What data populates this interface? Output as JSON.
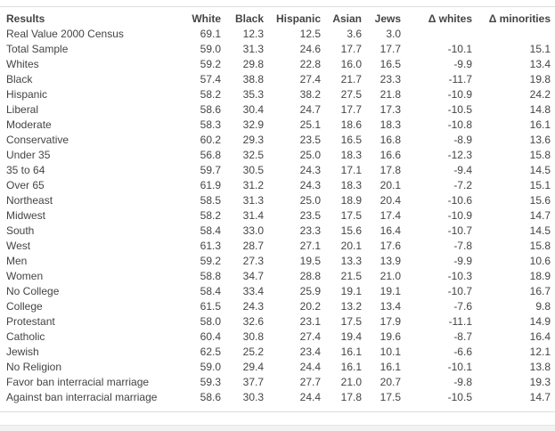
{
  "table": {
    "headers": [
      "Results",
      "White",
      "Black",
      "Hispanic",
      "Asian",
      "Jews",
      "Δ whites",
      "Δ minorities"
    ],
    "rows": [
      [
        "Real Value 2000 Census",
        "69.1",
        "12.3",
        "12.5",
        "3.6",
        "3.0",
        "",
        ""
      ],
      [
        "Total Sample",
        "59.0",
        "31.3",
        "24.6",
        "17.7",
        "17.7",
        "-10.1",
        "15.1"
      ],
      [
        "Whites",
        "59.2",
        "29.8",
        "22.8",
        "16.0",
        "16.5",
        "-9.9",
        "13.4"
      ],
      [
        "Black",
        "57.4",
        "38.8",
        "27.4",
        "21.7",
        "23.3",
        "-11.7",
        "19.8"
      ],
      [
        "Hispanic",
        "58.2",
        "35.3",
        "38.2",
        "27.5",
        "21.8",
        "-10.9",
        "24.2"
      ],
      [
        "Liberal",
        "58.6",
        "30.4",
        "24.7",
        "17.7",
        "17.3",
        "-10.5",
        "14.8"
      ],
      [
        "Moderate",
        "58.3",
        "32.9",
        "25.1",
        "18.6",
        "18.3",
        "-10.8",
        "16.1"
      ],
      [
        "Conservative",
        "60.2",
        "29.3",
        "23.5",
        "16.5",
        "16.8",
        "-8.9",
        "13.6"
      ],
      [
        "Under 35",
        "56.8",
        "32.5",
        "25.0",
        "18.3",
        "16.6",
        "-12.3",
        "15.8"
      ],
      [
        "35 to 64",
        "59.7",
        "30.5",
        "24.3",
        "17.1",
        "17.8",
        "-9.4",
        "14.5"
      ],
      [
        "Over 65",
        "61.9",
        "31.2",
        "24.3",
        "18.3",
        "20.1",
        "-7.2",
        "15.1"
      ],
      [
        "Northeast",
        "58.5",
        "31.3",
        "25.0",
        "18.9",
        "20.4",
        "-10.6",
        "15.6"
      ],
      [
        "Midwest",
        "58.2",
        "31.4",
        "23.5",
        "17.5",
        "17.4",
        "-10.9",
        "14.7"
      ],
      [
        "South",
        "58.4",
        "33.0",
        "23.3",
        "15.6",
        "16.4",
        "-10.7",
        "14.5"
      ],
      [
        "West",
        "61.3",
        "28.7",
        "27.1",
        "20.1",
        "17.6",
        "-7.8",
        "15.8"
      ],
      [
        "Men",
        "59.2",
        "27.3",
        "19.5",
        "13.3",
        "13.9",
        "-9.9",
        "10.6"
      ],
      [
        "Women",
        "58.8",
        "34.7",
        "28.8",
        "21.5",
        "21.0",
        "-10.3",
        "18.9"
      ],
      [
        "No College",
        "58.4",
        "33.4",
        "25.9",
        "19.1",
        "19.1",
        "-10.7",
        "16.7"
      ],
      [
        "College",
        "61.5",
        "24.3",
        "20.2",
        "13.2",
        "13.4",
        "-7.6",
        "9.8"
      ],
      [
        "Protestant",
        "58.0",
        "32.6",
        "23.1",
        "17.5",
        "17.9",
        "-11.1",
        "14.9"
      ],
      [
        "Catholic",
        "60.4",
        "30.8",
        "27.4",
        "19.4",
        "19.6",
        "-8.7",
        "16.4"
      ],
      [
        "Jewish",
        "62.5",
        "25.2",
        "23.4",
        "16.1",
        "10.1",
        "-6.6",
        "12.1"
      ],
      [
        "No Religion",
        "59.0",
        "29.4",
        "24.4",
        "16.1",
        "16.1",
        "-10.1",
        "13.8"
      ],
      [
        "Favor ban interracial marriage",
        "59.3",
        "37.7",
        "27.7",
        "21.0",
        "20.7",
        "-9.8",
        "19.3"
      ],
      [
        "Against ban interracial marriage",
        "58.6",
        "30.3",
        "24.4",
        "17.8",
        "17.5",
        "-10.5",
        "14.7"
      ]
    ]
  },
  "colors": {
    "text": "#444444",
    "rule": "#dddddd",
    "background": "#ffffff"
  }
}
